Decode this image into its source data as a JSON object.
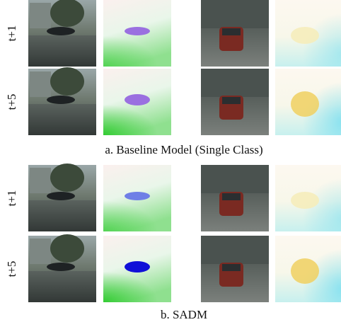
{
  "panels": [
    {
      "caption": "a. Baseline Model (Single Class)",
      "rows": [
        {
          "label": "t+1"
        },
        {
          "label": "t+5"
        }
      ]
    },
    {
      "caption": "b. SADM",
      "rows": [
        {
          "label": "t+1"
        },
        {
          "label": "t+5"
        }
      ]
    }
  ]
}
